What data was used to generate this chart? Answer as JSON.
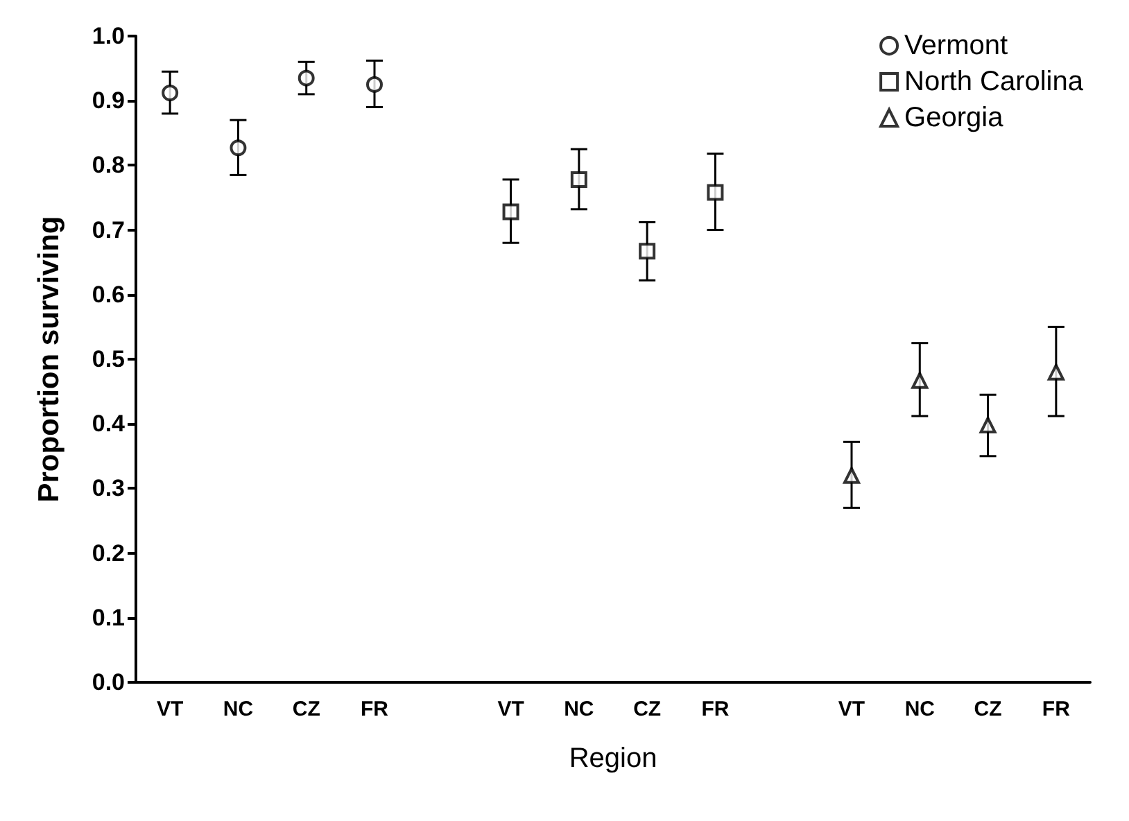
{
  "chart_data": {
    "type": "scatter",
    "xlabel": "Region",
    "ylabel": "Proportion surviving",
    "categories": [
      "VT",
      "NC",
      "CZ",
      "FR",
      null,
      "VT",
      "NC",
      "CZ",
      "FR",
      null,
      "VT",
      "NC",
      "CZ",
      "FR"
    ],
    "series": [
      {
        "name": "Vermont",
        "color": "#000000",
        "marker": "circle",
        "values": [
          0.912,
          0.827,
          0.935,
          0.925,
          null,
          null,
          null,
          null,
          null,
          null,
          null,
          null,
          null,
          null
        ],
        "errors": [
          [
            0.88,
            0.945
          ],
          [
            0.785,
            0.87
          ],
          [
            0.91,
            0.96
          ],
          [
            0.89,
            0.962
          ],
          null,
          null,
          null,
          null,
          null,
          null,
          null,
          null,
          null,
          null
        ]
      },
      {
        "name": "North Carolina",
        "color": "#000000",
        "marker": "square",
        "values": [
          null,
          null,
          null,
          null,
          null,
          0.728,
          0.778,
          0.667,
          0.758,
          null,
          null,
          null,
          null,
          null
        ],
        "errors": [
          null,
          null,
          null,
          null,
          null,
          [
            0.68,
            0.778
          ],
          [
            0.732,
            0.825
          ],
          [
            0.622,
            0.712
          ],
          [
            0.7,
            0.818
          ],
          null,
          null,
          null,
          null,
          null
        ]
      },
      {
        "name": "Georgia",
        "color": "#000000",
        "marker": "triangle",
        "values": [
          null,
          null,
          null,
          null,
          null,
          null,
          null,
          null,
          null,
          null,
          0.32,
          0.467,
          0.398,
          0.48
        ],
        "errors": [
          null,
          null,
          null,
          null,
          null,
          null,
          null,
          null,
          null,
          null,
          [
            0.27,
            0.372
          ],
          [
            0.412,
            0.525
          ],
          [
            0.35,
            0.445
          ],
          [
            0.412,
            0.55
          ]
        ]
      }
    ],
    "ylim": [
      0,
      1
    ],
    "yticks": [
      {
        "value": 0,
        "label": "0.0"
      },
      {
        "value": 0.1,
        "label": "0.1"
      },
      {
        "value": 0.2,
        "label": "0.2"
      },
      {
        "value": 0.3,
        "label": "0.3"
      },
      {
        "value": 0.4,
        "label": "0.4"
      },
      {
        "value": 0.5,
        "label": "0.5"
      },
      {
        "value": 0.6,
        "label": "0.6"
      },
      {
        "value": 0.7,
        "label": "0.7"
      },
      {
        "value": 0.8,
        "label": "0.8"
      },
      {
        "value": 0.9,
        "label": "0.9"
      },
      {
        "value": 1,
        "label": "1.0"
      }
    ],
    "legend": "top right"
  }
}
